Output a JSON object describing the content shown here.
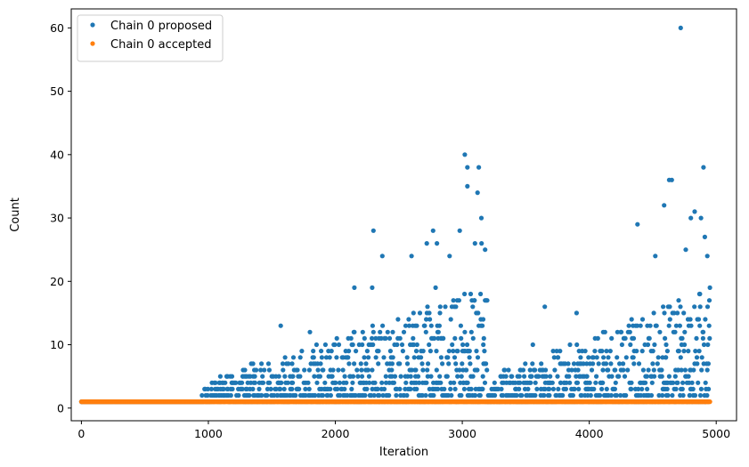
{
  "chart_data": {
    "type": "scatter",
    "xlabel": "Iteration",
    "ylabel": "Count",
    "xlim": [
      -80,
      5160
    ],
    "ylim": [
      -2,
      63
    ],
    "x_ticks": [
      0,
      1000,
      2000,
      3000,
      4000,
      5000
    ],
    "y_ticks": [
      0,
      10,
      20,
      30,
      40,
      50,
      60
    ],
    "x_tick_labels": [
      "0",
      "1000",
      "2000",
      "3000",
      "4000",
      "5000"
    ],
    "y_tick_labels": [
      "0",
      "10",
      "20",
      "30",
      "40",
      "50",
      "60"
    ],
    "legend_position": "top-left",
    "grid": false,
    "iteration_range": [
      0,
      4950
    ],
    "series": [
      {
        "name": "Chain 0 proposed",
        "color": "#1f77b4",
        "values_summary": "one value per iteration; 1 for iterations below ~950, then mostly 1-10 with growing spread",
        "notable_points": [
          {
            "x": 950,
            "y": 2
          },
          {
            "x": 1570,
            "y": 13
          },
          {
            "x": 1800,
            "y": 12
          },
          {
            "x": 2150,
            "y": 19
          },
          {
            "x": 2300,
            "y": 28
          },
          {
            "x": 2290,
            "y": 19
          },
          {
            "x": 2370,
            "y": 24
          },
          {
            "x": 2600,
            "y": 24
          },
          {
            "x": 2720,
            "y": 26
          },
          {
            "x": 2770,
            "y": 28
          },
          {
            "x": 2800,
            "y": 26
          },
          {
            "x": 2900,
            "y": 24
          },
          {
            "x": 2980,
            "y": 28
          },
          {
            "x": 3020,
            "y": 40
          },
          {
            "x": 3040,
            "y": 38
          },
          {
            "x": 3040,
            "y": 35
          },
          {
            "x": 3100,
            "y": 26
          },
          {
            "x": 3120,
            "y": 34
          },
          {
            "x": 3130,
            "y": 38
          },
          {
            "x": 3150,
            "y": 30
          },
          {
            "x": 3180,
            "y": 25
          },
          {
            "x": 3650,
            "y": 16
          },
          {
            "x": 3900,
            "y": 15
          },
          {
            "x": 4380,
            "y": 29
          },
          {
            "x": 4520,
            "y": 24
          },
          {
            "x": 4590,
            "y": 32
          },
          {
            "x": 4630,
            "y": 36
          },
          {
            "x": 4650,
            "y": 36
          },
          {
            "x": 4720,
            "y": 60
          },
          {
            "x": 4760,
            "y": 25
          },
          {
            "x": 4800,
            "y": 30
          },
          {
            "x": 4830,
            "y": 31
          },
          {
            "x": 4880,
            "y": 30
          },
          {
            "x": 4900,
            "y": 38
          },
          {
            "x": 4910,
            "y": 27
          },
          {
            "x": 4930,
            "y": 24
          }
        ]
      },
      {
        "name": "Chain 0 accepted",
        "color": "#ff7f0e",
        "values_summary": "constant 1 for every iteration from 0 to ~4950"
      }
    ]
  }
}
